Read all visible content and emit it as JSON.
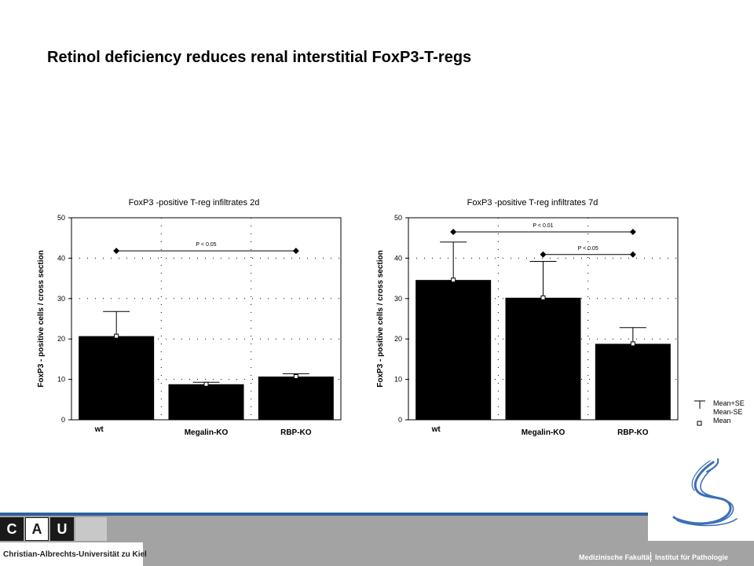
{
  "title": "Retinol deficiency reduces renal interstitial FoxP3-T-regs",
  "chart_data": [
    {
      "type": "bar",
      "title": "FoxP3 -positive T-reg infiltrates 2d",
      "ylabel": "FoxP3 - positive cells / cross section",
      "xlabel": "",
      "ylim": [
        0,
        50
      ],
      "yticks": [
        0,
        10,
        20,
        30,
        40,
        50
      ],
      "categories": [
        "wt",
        "Megalin-KO",
        "RBP-KO"
      ],
      "values": [
        20.7,
        8.8,
        10.7
      ],
      "se_upper": [
        26.8,
        9.3,
        11.4
      ],
      "grid": true,
      "significance": [
        {
          "from": 0,
          "to": 2,
          "y": 41.8,
          "label": "P < 0.05"
        }
      ]
    },
    {
      "type": "bar",
      "title": "FoxP3 -positive T-reg infiltrates 7d",
      "ylabel": "FoxP3 - positive cells / cross section",
      "xlabel": "",
      "ylim": [
        0,
        50
      ],
      "yticks": [
        0,
        10,
        20,
        30,
        40,
        50
      ],
      "categories": [
        "wt",
        "Megalin-KO",
        "RBP-KO"
      ],
      "values": [
        34.6,
        30.2,
        18.8
      ],
      "se_upper": [
        44.0,
        39.2,
        22.8
      ],
      "grid": true,
      "significance": [
        {
          "from": 0,
          "to": 2,
          "y": 46.5,
          "label": "P < 0.01"
        },
        {
          "from": 1,
          "to": 2,
          "y": 40.9,
          "label": "P < 0.05"
        }
      ]
    }
  ],
  "legend": {
    "items": [
      "Mean+SE",
      "Mean-SE",
      "Mean"
    ]
  },
  "footer": {
    "logo_letters": [
      "C",
      "A",
      "U"
    ],
    "university": "Christian-Albrechts-Universität zu Kiel",
    "faculty": "Medizinische Fakultät",
    "institute": "Institut für Pathologie"
  },
  "colors": {
    "bar": "#000000",
    "footer_band": "#a3a3a3",
    "footer_accent": "#2f5f9e",
    "logo_blue": "#3b6fb6"
  }
}
